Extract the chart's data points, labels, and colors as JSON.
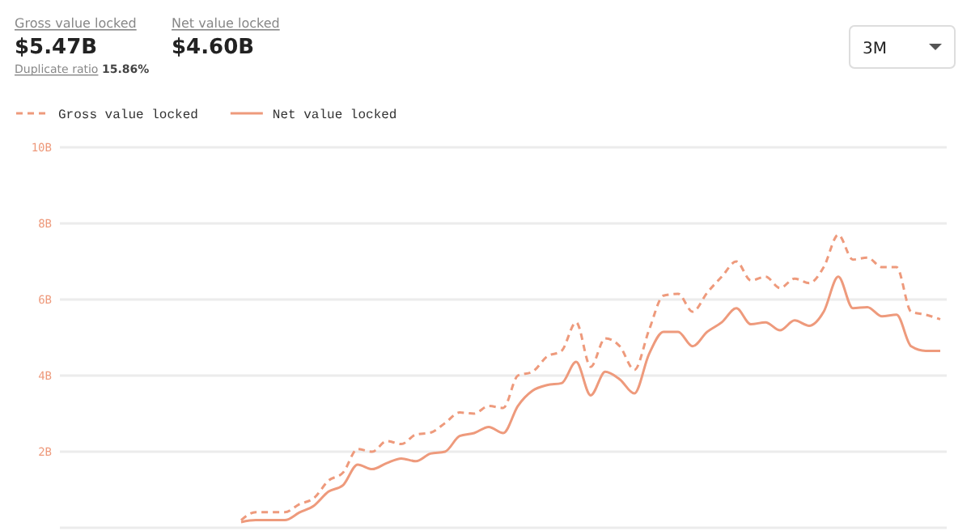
{
  "chart_data": {
    "type": "line",
    "categories": [
      null,
      null,
      null,
      null,
      null,
      null,
      null,
      null,
      null,
      null,
      null,
      null,
      null,
      null,
      null,
      null,
      null,
      null,
      null,
      null,
      null,
      null,
      null,
      null,
      null,
      null,
      null,
      null,
      null,
      null,
      null,
      null,
      null,
      null,
      null,
      null,
      null,
      null,
      null,
      null,
      null,
      null,
      null,
      null,
      null,
      null,
      null,
      null,
      null,
      null,
      null,
      null,
      null,
      null,
      null,
      null,
      null,
      null,
      null,
      null,
      null
    ],
    "series": [
      {
        "name": "Gross value locked",
        "color": "#ee9a7c",
        "line_style": "dashed",
        "values": [
          null,
          null,
          null,
          null,
          null,
          null,
          null,
          null,
          null,
          null,
          null,
          null,
          0.2,
          0.41,
          0.41,
          0.41,
          0.62,
          0.78,
          1.24,
          1.45,
          2.07,
          2.0,
          2.28,
          2.2,
          2.45,
          2.5,
          2.75,
          3.03,
          3.0,
          3.2,
          3.15,
          4.0,
          4.1,
          4.5,
          4.65,
          5.4,
          4.23,
          4.98,
          4.77,
          4.15,
          5.19,
          6.1,
          6.15,
          5.68,
          6.18,
          6.6,
          7.0,
          6.5,
          6.6,
          6.3,
          6.55,
          6.43,
          6.85,
          7.7,
          7.05,
          7.1,
          6.85,
          6.85,
          5.68,
          5.6,
          5.48
        ]
      },
      {
        "name": "Net value locked",
        "color": "#ee9a7c",
        "line_style": "solid",
        "values": [
          null,
          null,
          null,
          null,
          null,
          null,
          null,
          null,
          null,
          null,
          null,
          null,
          0.15,
          0.2,
          0.2,
          0.2,
          0.4,
          0.58,
          0.95,
          1.12,
          1.66,
          1.54,
          1.7,
          1.82,
          1.75,
          1.95,
          2.0,
          2.41,
          2.49,
          2.65,
          2.49,
          3.2,
          3.6,
          3.75,
          3.8,
          4.36,
          3.48,
          4.1,
          3.9,
          3.53,
          4.56,
          5.15,
          5.15,
          4.77,
          5.15,
          5.4,
          5.77,
          5.35,
          5.4,
          5.19,
          5.45,
          5.31,
          5.68,
          6.6,
          5.77,
          5.8,
          5.56,
          5.6,
          4.77,
          4.65,
          4.65
        ]
      }
    ],
    "ylim": [
      0,
      10
    ],
    "yticks": [
      {
        "value": 2,
        "label": "2B"
      },
      {
        "value": 4,
        "label": "4B"
      },
      {
        "value": 6,
        "label": "6B"
      },
      {
        "value": 8,
        "label": "8B"
      },
      {
        "value": 10,
        "label": "10B"
      }
    ],
    "grid": "y",
    "legend": "top left",
    "tick_labels": "y",
    "annotations": [
      "Gross value locked",
      "$5.47B",
      "Net value locked",
      "$4.60B",
      "Duplicate ratio",
      "15.86%",
      "3M"
    ]
  }
}
